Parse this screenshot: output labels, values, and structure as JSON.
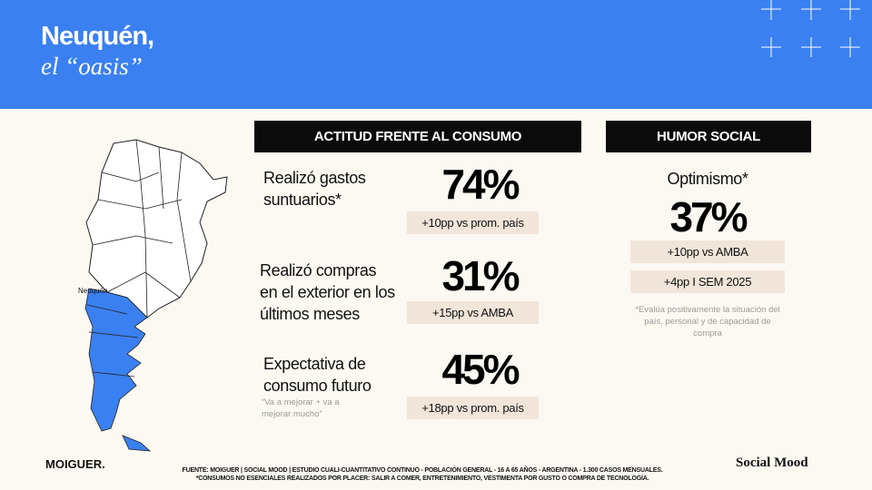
{
  "header": {
    "title": "Neuquén,",
    "subtitle": "el “oasis”"
  },
  "map": {
    "label": "Neuquén"
  },
  "consumo": {
    "heading": "ACTITUD FRENTE AL CONSUMO",
    "rows": [
      {
        "label": "Realizó gastos suntuarios*",
        "value": "74%",
        "badge": "+10pp vs prom. país"
      },
      {
        "label": "Realizó compras en el exterior en los últimos meses",
        "value": "31%",
        "badge": "+15pp vs AMBA"
      },
      {
        "label": "Expectativa de consumo futuro",
        "note": "“Va a mejorar + va a mejorar mucho”",
        "value": "45%",
        "badge": "+18pp vs prom. país"
      }
    ]
  },
  "humor": {
    "heading": "HUMOR SOCIAL",
    "label": "Optimismo*",
    "value": "37%",
    "badges": [
      "+10pp vs AMBA",
      "+4pp I SEM 2025"
    ],
    "note": "*Evalúa positivamente la situación del país, personal y de capacidad de compra"
  },
  "footer": {
    "brand": "MOIGUER.",
    "source": "FUENTE: MOIGUER | SOCIAL MOOD | ESTUDIO CUALI-CUANTITATIVO CONTINUO - POBLACIÓN GENERAL - 16 A 65 AÑOS - ARGENTINA - 1.300 CASOS MENSUALES.",
    "footnote": "*CONSUMOS NO ESENCIALES REALIZADOS POR PLACER: SALIR A COMER, ENTRETENIMIENTO, VESTIMENTA POR GUSTO O COMPRA DE TECNOLOGÍA.",
    "logo": "Social Mood"
  }
}
